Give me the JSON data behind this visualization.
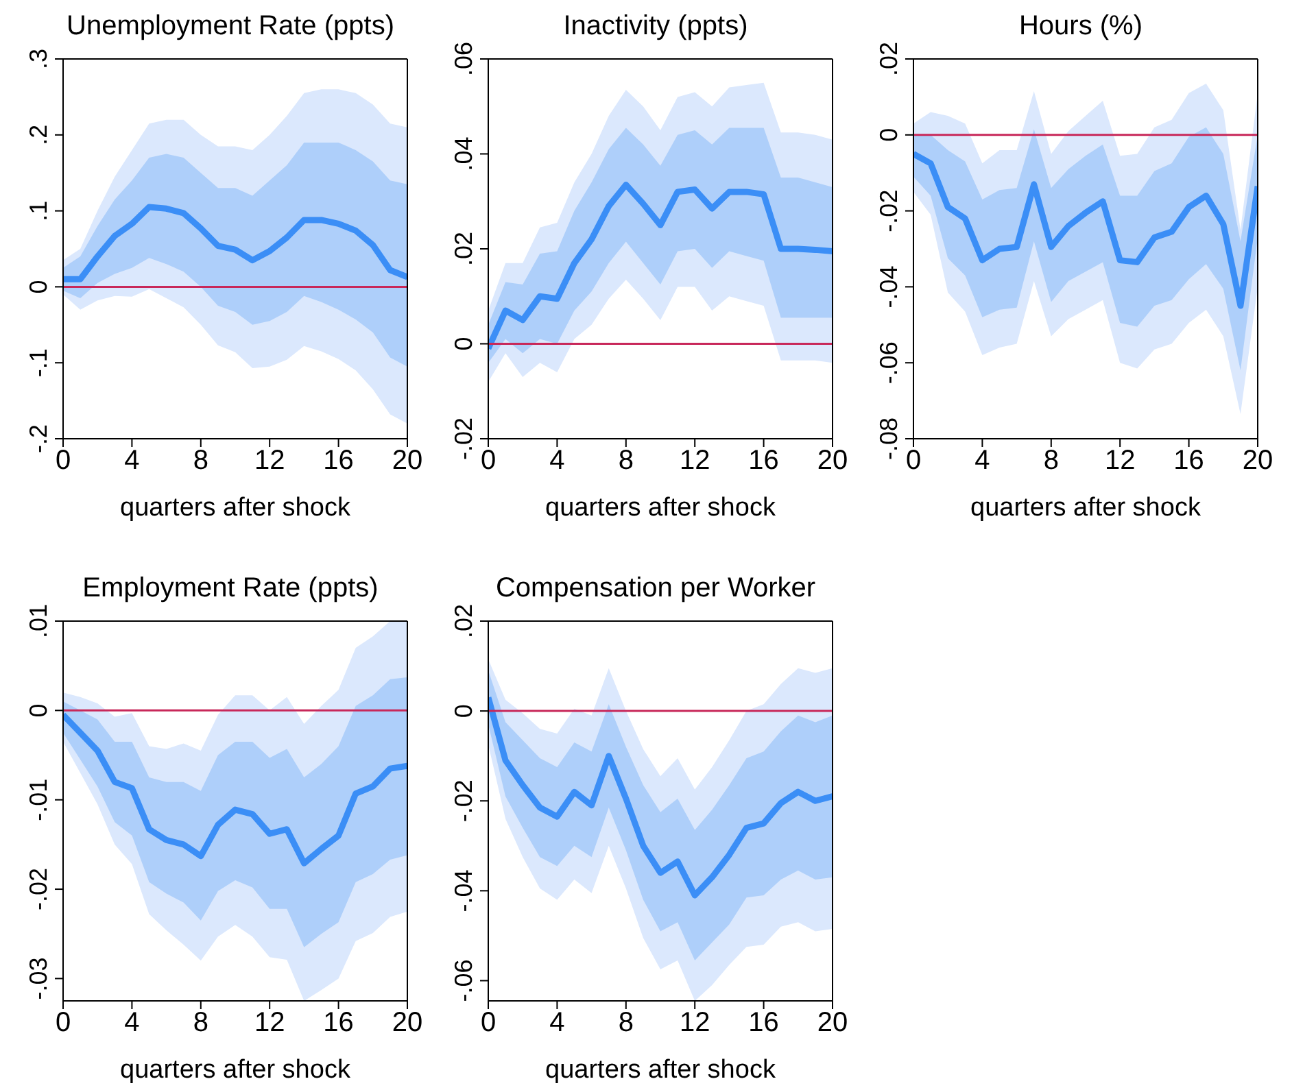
{
  "chart_data": [
    {
      "type": "line",
      "title": "Unemployment Rate (ppts)",
      "xlabel": "quarters after shock",
      "x": [
        0,
        1,
        2,
        3,
        4,
        5,
        6,
        7,
        8,
        9,
        10,
        11,
        12,
        13,
        14,
        15,
        16,
        17,
        18,
        19,
        20
      ],
      "xlim": [
        0,
        20
      ],
      "xticks": [
        0,
        4,
        8,
        12,
        16,
        20
      ],
      "ylim": [
        -0.2,
        0.3
      ],
      "yticks": [
        {
          "value": -0.2,
          "label": "-.2"
        },
        {
          "value": -0.1,
          "label": "-.1"
        },
        {
          "value": 0,
          "label": "0"
        },
        {
          "value": 0.1,
          "label": ".1"
        },
        {
          "value": 0.2,
          "label": ".2"
        },
        {
          "value": 0.3,
          "label": ".3"
        }
      ],
      "grid": false,
      "ref_lines": [
        {
          "axis": "y",
          "value": 0,
          "color": "#c8285a"
        }
      ],
      "series": [
        {
          "color": "#dbe8fd",
          "values": [
            null,
            null,
            null,
            null,
            null,
            null,
            null,
            null,
            null,
            null,
            null,
            null,
            null,
            null,
            null,
            null,
            null,
            null,
            null,
            null,
            null
          ],
          "lower": [
            -0.01,
            -0.03,
            -0.018,
            -0.012,
            -0.013,
            -0.003,
            -0.015,
            -0.027,
            -0.05,
            -0.077,
            -0.086,
            -0.107,
            -0.105,
            -0.096,
            -0.078,
            -0.085,
            -0.095,
            -0.11,
            -0.135,
            -0.168,
            -0.18
          ],
          "upper": [
            0.035,
            0.05,
            0.1,
            0.145,
            0.18,
            0.215,
            0.22,
            0.22,
            0.2,
            0.185,
            0.185,
            0.18,
            0.2,
            0.225,
            0.255,
            0.26,
            0.26,
            0.255,
            0.24,
            0.215,
            0.21
          ]
        },
        {
          "color": "#3b8ef6",
          "values": [
            0.01,
            0.01,
            0.04,
            0.067,
            0.083,
            0.105,
            0.103,
            0.097,
            0.077,
            0.054,
            0.049,
            0.035,
            0.047,
            0.065,
            0.088,
            0.088,
            0.083,
            0.074,
            0.055,
            0.022,
            0.013
          ],
          "lower": [
            -0.005,
            -0.015,
            0.005,
            0.017,
            0.025,
            0.038,
            0.03,
            0.02,
            0.0,
            -0.025,
            -0.033,
            -0.05,
            -0.045,
            -0.033,
            -0.012,
            -0.02,
            -0.03,
            -0.043,
            -0.06,
            -0.093,
            -0.105
          ],
          "upper": [
            0.025,
            0.04,
            0.08,
            0.115,
            0.14,
            0.17,
            0.175,
            0.17,
            0.15,
            0.13,
            0.13,
            0.12,
            0.14,
            0.16,
            0.19,
            0.19,
            0.19,
            0.18,
            0.165,
            0.14,
            0.135
          ]
        }
      ]
    },
    {
      "type": "line",
      "title": "Inactivity (ppts)",
      "xlabel": "quarters after shock",
      "x": [
        0,
        1,
        2,
        3,
        4,
        5,
        6,
        7,
        8,
        9,
        10,
        11,
        12,
        13,
        14,
        15,
        16,
        17,
        18,
        19,
        20
      ],
      "xlim": [
        0,
        20
      ],
      "xticks": [
        0,
        4,
        8,
        12,
        16,
        20
      ],
      "ylim": [
        -0.02,
        0.06
      ],
      "yticks": [
        {
          "value": -0.02,
          "label": "-.02"
        },
        {
          "value": 0,
          "label": "0"
        },
        {
          "value": 0.02,
          "label": ".02"
        },
        {
          "value": 0.04,
          "label": ".04"
        },
        {
          "value": 0.06,
          "label": ".06"
        }
      ],
      "grid": false,
      "ref_lines": [
        {
          "axis": "y",
          "value": 0,
          "color": "#c8285a"
        }
      ],
      "series": [
        {
          "color": "#dbe8fd",
          "values": [
            null,
            null,
            null,
            null,
            null,
            null,
            null,
            null,
            null,
            null,
            null,
            null,
            null,
            null,
            null,
            null,
            null,
            null,
            null,
            null,
            null
          ],
          "lower": [
            -0.008,
            -0.002,
            -0.007,
            -0.004,
            -0.006,
            0.001,
            0.004,
            0.0095,
            0.0135,
            0.0095,
            0.005,
            0.012,
            0.012,
            0.007,
            0.01,
            0.009,
            0.008,
            -0.0035,
            -0.0035,
            -0.0035,
            -0.004
          ],
          "upper": [
            0.007,
            0.017,
            0.017,
            0.0245,
            0.0255,
            0.034,
            0.04,
            0.048,
            0.0535,
            0.05,
            0.045,
            0.052,
            0.053,
            0.05,
            0.054,
            0.0545,
            0.055,
            0.0445,
            0.0445,
            0.044,
            0.043
          ]
        },
        {
          "color": "#3b8ef6",
          "values": [
            -0.001,
            0.007,
            0.005,
            0.01,
            0.0095,
            0.017,
            0.022,
            0.029,
            0.0335,
            0.0295,
            0.025,
            0.032,
            0.0325,
            0.0285,
            0.032,
            0.032,
            0.0315,
            0.02,
            0.02,
            0.0198,
            0.0195
          ],
          "lower": [
            -0.004,
            0.001,
            -0.002,
            0.001,
            0.0,
            0.007,
            0.011,
            0.017,
            0.0215,
            0.017,
            0.0125,
            0.0195,
            0.02,
            0.016,
            0.0195,
            0.0185,
            0.0175,
            0.0055,
            0.0055,
            0.0055,
            0.0055
          ],
          "upper": [
            0.004,
            0.013,
            0.0125,
            0.019,
            0.0195,
            0.028,
            0.034,
            0.041,
            0.0455,
            0.042,
            0.0375,
            0.044,
            0.045,
            0.042,
            0.0455,
            0.0455,
            0.0455,
            0.035,
            0.035,
            0.034,
            0.033
          ]
        }
      ]
    },
    {
      "type": "line",
      "title": "Hours (%)",
      "xlabel": "quarters after shock",
      "x": [
        0,
        1,
        2,
        3,
        4,
        5,
        6,
        7,
        8,
        9,
        10,
        11,
        12,
        13,
        14,
        15,
        16,
        17,
        18,
        19,
        20
      ],
      "xlim": [
        0,
        20
      ],
      "xticks": [
        0,
        4,
        8,
        12,
        16,
        20
      ],
      "ylim": [
        -0.08,
        0.02
      ],
      "yticks": [
        {
          "value": -0.08,
          "label": "-.08"
        },
        {
          "value": -0.06,
          "label": "-.06"
        },
        {
          "value": -0.04,
          "label": "-.04"
        },
        {
          "value": -0.02,
          "label": "-.02"
        },
        {
          "value": 0,
          "label": "0"
        },
        {
          "value": 0.02,
          "label": ".02"
        }
      ],
      "grid": false,
      "ref_lines": [
        {
          "axis": "y",
          "value": 0,
          "color": "#c8285a"
        }
      ],
      "series": [
        {
          "color": "#dbe8fd",
          "values": [
            null,
            null,
            null,
            null,
            null,
            null,
            null,
            null,
            null,
            null,
            null,
            null,
            null,
            null,
            null,
            null,
            null,
            null,
            null,
            null,
            null
          ],
          "lower": [
            -0.015,
            -0.021,
            -0.0415,
            -0.0465,
            -0.058,
            -0.056,
            -0.055,
            -0.0385,
            -0.053,
            -0.0485,
            -0.046,
            -0.0435,
            -0.06,
            -0.0615,
            -0.0565,
            -0.055,
            -0.0495,
            -0.046,
            -0.053,
            -0.0735,
            -0.04
          ],
          "upper": [
            0.003,
            0.006,
            0.005,
            0.003,
            -0.0075,
            -0.004,
            -0.004,
            0.0115,
            -0.005,
            0.001,
            0.005,
            0.009,
            -0.0055,
            -0.005,
            0.002,
            0.004,
            0.011,
            0.0135,
            0.0065,
            -0.025,
            0.011
          ]
        },
        {
          "color": "#3b8ef6",
          "values": [
            -0.005,
            -0.0075,
            -0.019,
            -0.022,
            -0.033,
            -0.03,
            -0.0295,
            -0.013,
            -0.0295,
            -0.024,
            -0.0205,
            -0.0175,
            -0.033,
            -0.0335,
            -0.027,
            -0.0255,
            -0.019,
            -0.016,
            -0.0235,
            -0.045,
            -0.0135
          ],
          "lower": [
            -0.011,
            -0.016,
            -0.0325,
            -0.037,
            -0.048,
            -0.046,
            -0.0455,
            -0.028,
            -0.044,
            -0.0385,
            -0.036,
            -0.0335,
            -0.0495,
            -0.0505,
            -0.045,
            -0.0435,
            -0.038,
            -0.034,
            -0.0405,
            -0.062,
            -0.027
          ],
          "upper": [
            0.0,
            0.0,
            -0.004,
            -0.007,
            -0.017,
            -0.0145,
            -0.014,
            0.0015,
            -0.014,
            -0.009,
            -0.0055,
            -0.0025,
            -0.016,
            -0.016,
            -0.0095,
            -0.0075,
            -0.0005,
            0.002,
            -0.005,
            -0.028,
            0.0
          ]
        }
      ]
    },
    {
      "type": "line",
      "title": "Employment Rate (ppts)",
      "xlabel": "quarters after shock",
      "x": [
        0,
        1,
        2,
        3,
        4,
        5,
        6,
        7,
        8,
        9,
        10,
        11,
        12,
        13,
        14,
        15,
        16,
        17,
        18,
        19,
        20
      ],
      "xlim": [
        0,
        20
      ],
      "xticks": [
        0,
        4,
        8,
        12,
        16,
        20
      ],
      "ylim": [
        -0.0325,
        0.01
      ],
      "yticks": [
        {
          "value": -0.03,
          "label": "-.03"
        },
        {
          "value": -0.02,
          "label": "-.02"
        },
        {
          "value": -0.01,
          "label": "-.01"
        },
        {
          "value": 0,
          "label": "0"
        },
        {
          "value": 0.01,
          "label": ".01"
        }
      ],
      "grid": false,
      "ref_lines": [
        {
          "axis": "y",
          "value": 0,
          "color": "#c8285a"
        }
      ],
      "series": [
        {
          "color": "#dbe8fd",
          "values": [
            null,
            null,
            null,
            null,
            null,
            null,
            null,
            null,
            null,
            null,
            null,
            null,
            null,
            null,
            null,
            null,
            null,
            null,
            null,
            null,
            null
          ],
          "lower": [
            -0.0035,
            -0.007,
            -0.0105,
            -0.015,
            -0.0172,
            -0.0228,
            -0.0246,
            -0.0262,
            -0.028,
            -0.0253,
            -0.024,
            -0.0253,
            -0.0276,
            -0.0279,
            -0.0325,
            -0.0313,
            -0.03,
            -0.0258,
            -0.0249,
            -0.0231,
            -0.0225
          ],
          "upper": [
            0.002,
            0.0015,
            0.0008,
            -0.0007,
            -0.0003,
            -0.004,
            -0.0043,
            -0.0037,
            -0.0045,
            -0.0005,
            0.0017,
            0.0017,
            0.0,
            0.0015,
            -0.0015,
            0.0005,
            0.0023,
            0.007,
            0.0083,
            0.01,
            0.01
          ]
        },
        {
          "color": "#3b8ef6",
          "values": [
            -0.0005,
            -0.0025,
            -0.0045,
            -0.008,
            -0.0087,
            -0.0133,
            -0.0145,
            -0.015,
            -0.0163,
            -0.0128,
            -0.0111,
            -0.0116,
            -0.0138,
            -0.0133,
            -0.0171,
            -0.0155,
            -0.014,
            -0.0093,
            -0.0085,
            -0.0065,
            -0.0062
          ],
          "lower": [
            -0.0025,
            -0.0055,
            -0.0085,
            -0.0125,
            -0.014,
            -0.0192,
            -0.0205,
            -0.0215,
            -0.0235,
            -0.0202,
            -0.019,
            -0.0198,
            -0.0222,
            -0.0222,
            -0.0265,
            -0.025,
            -0.0237,
            -0.0192,
            -0.0183,
            -0.0167,
            -0.0162
          ],
          "upper": [
            0.001,
            0.0,
            -0.001,
            -0.0035,
            -0.0035,
            -0.0075,
            -0.008,
            -0.008,
            -0.009,
            -0.005,
            -0.0035,
            -0.0035,
            -0.0053,
            -0.0043,
            -0.0075,
            -0.006,
            -0.004,
            0.0005,
            0.0017,
            0.0035,
            0.0037
          ]
        }
      ]
    },
    {
      "type": "line",
      "title": "Compensation per Worker",
      "xlabel": "quarters after shock",
      "x": [
        0,
        1,
        2,
        3,
        4,
        5,
        6,
        7,
        8,
        9,
        10,
        11,
        12,
        13,
        14,
        15,
        16,
        17,
        18,
        19,
        20
      ],
      "xlim": [
        0,
        20
      ],
      "xticks": [
        0,
        4,
        8,
        12,
        16,
        20
      ],
      "ylim": [
        -0.0645,
        0.02
      ],
      "yticks": [
        {
          "value": -0.06,
          "label": "-.06"
        },
        {
          "value": -0.04,
          "label": "-.04"
        },
        {
          "value": -0.02,
          "label": "-.02"
        },
        {
          "value": 0,
          "label": "0"
        },
        {
          "value": 0.02,
          "label": ".02"
        }
      ],
      "grid": false,
      "ref_lines": [
        {
          "axis": "y",
          "value": 0,
          "color": "#c8285a"
        }
      ],
      "series": [
        {
          "color": "#dbe8fd",
          "values": [
            null,
            null,
            null,
            null,
            null,
            null,
            null,
            null,
            null,
            null,
            null,
            null,
            null,
            null,
            null,
            null,
            null,
            null,
            null,
            null,
            null
          ],
          "lower": [
            -0.0075,
            -0.024,
            -0.0325,
            -0.0395,
            -0.042,
            -0.0375,
            -0.0405,
            -0.03,
            -0.0395,
            -0.0505,
            -0.0575,
            -0.0555,
            -0.0645,
            -0.061,
            -0.0565,
            -0.0525,
            -0.052,
            -0.048,
            -0.047,
            -0.049,
            -0.0485
          ],
          "upper": [
            0.0115,
            0.0025,
            -0.0005,
            -0.004,
            -0.005,
            0.0005,
            -0.001,
            0.0095,
            0.0,
            -0.0085,
            -0.0145,
            -0.0105,
            -0.0175,
            -0.0125,
            -0.0065,
            0.0,
            0.0015,
            0.006,
            0.0095,
            0.0085,
            0.0095
          ]
        },
        {
          "color": "#3b8ef6",
          "values": [
            0.003,
            -0.011,
            -0.0165,
            -0.0215,
            -0.0235,
            -0.018,
            -0.021,
            -0.01,
            -0.0195,
            -0.03,
            -0.036,
            -0.0335,
            -0.041,
            -0.037,
            -0.032,
            -0.026,
            -0.025,
            -0.0205,
            -0.018,
            -0.02,
            -0.019
          ],
          "lower": [
            -0.003,
            -0.019,
            -0.026,
            -0.0325,
            -0.0345,
            -0.03,
            -0.0325,
            -0.0215,
            -0.031,
            -0.042,
            -0.049,
            -0.047,
            -0.0555,
            -0.0515,
            -0.0475,
            -0.0415,
            -0.041,
            -0.0375,
            -0.0355,
            -0.0375,
            -0.037
          ],
          "upper": [
            0.009,
            -0.0025,
            -0.0065,
            -0.0105,
            -0.0125,
            -0.007,
            -0.009,
            0.0015,
            -0.008,
            -0.0165,
            -0.0225,
            -0.0195,
            -0.0265,
            -0.022,
            -0.0165,
            -0.0105,
            -0.009,
            -0.0045,
            -0.001,
            -0.0025,
            -0.001
          ]
        }
      ]
    }
  ]
}
